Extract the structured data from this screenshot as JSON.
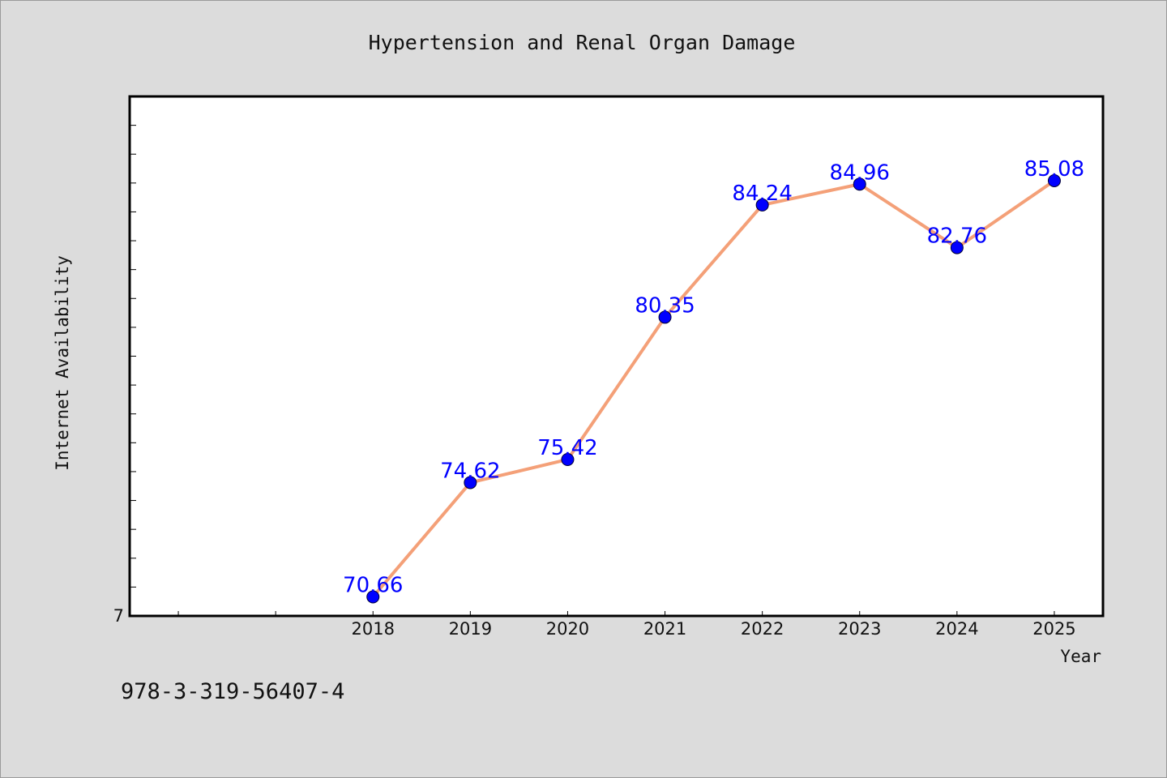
{
  "colors": {
    "background": "#dcdcdc",
    "plot_background": "#ffffff",
    "line": "#f4a078",
    "marker": "#0000ff",
    "data_label": "#0000ff",
    "text": "#111111"
  },
  "footer_text": "978-3-319-56407-4",
  "chart_data": {
    "type": "line",
    "title": "Hypertension and Renal Organ Damage",
    "xlabel": "Year",
    "ylabel": "Internet Availability",
    "x": [
      "2018",
      "2019",
      "2020",
      "2021",
      "2022",
      "2023",
      "2024",
      "2025"
    ],
    "series": [
      {
        "values": [
          70.66,
          74.62,
          75.42,
          80.35,
          84.24,
          84.96,
          82.76,
          85.08
        ],
        "data_labels": [
          "70.66",
          "74.62",
          "75.42",
          "80.35",
          "84.24",
          "84.96",
          "82.76",
          "85.08"
        ]
      }
    ],
    "y_tick_labels": [
      "7"
    ],
    "ylim": [
      70.0,
      88.0
    ],
    "xlim": [
      2015.5,
      2025.5
    ],
    "y_minor_tick_step": 1.0,
    "grid": false,
    "legend": "none"
  }
}
